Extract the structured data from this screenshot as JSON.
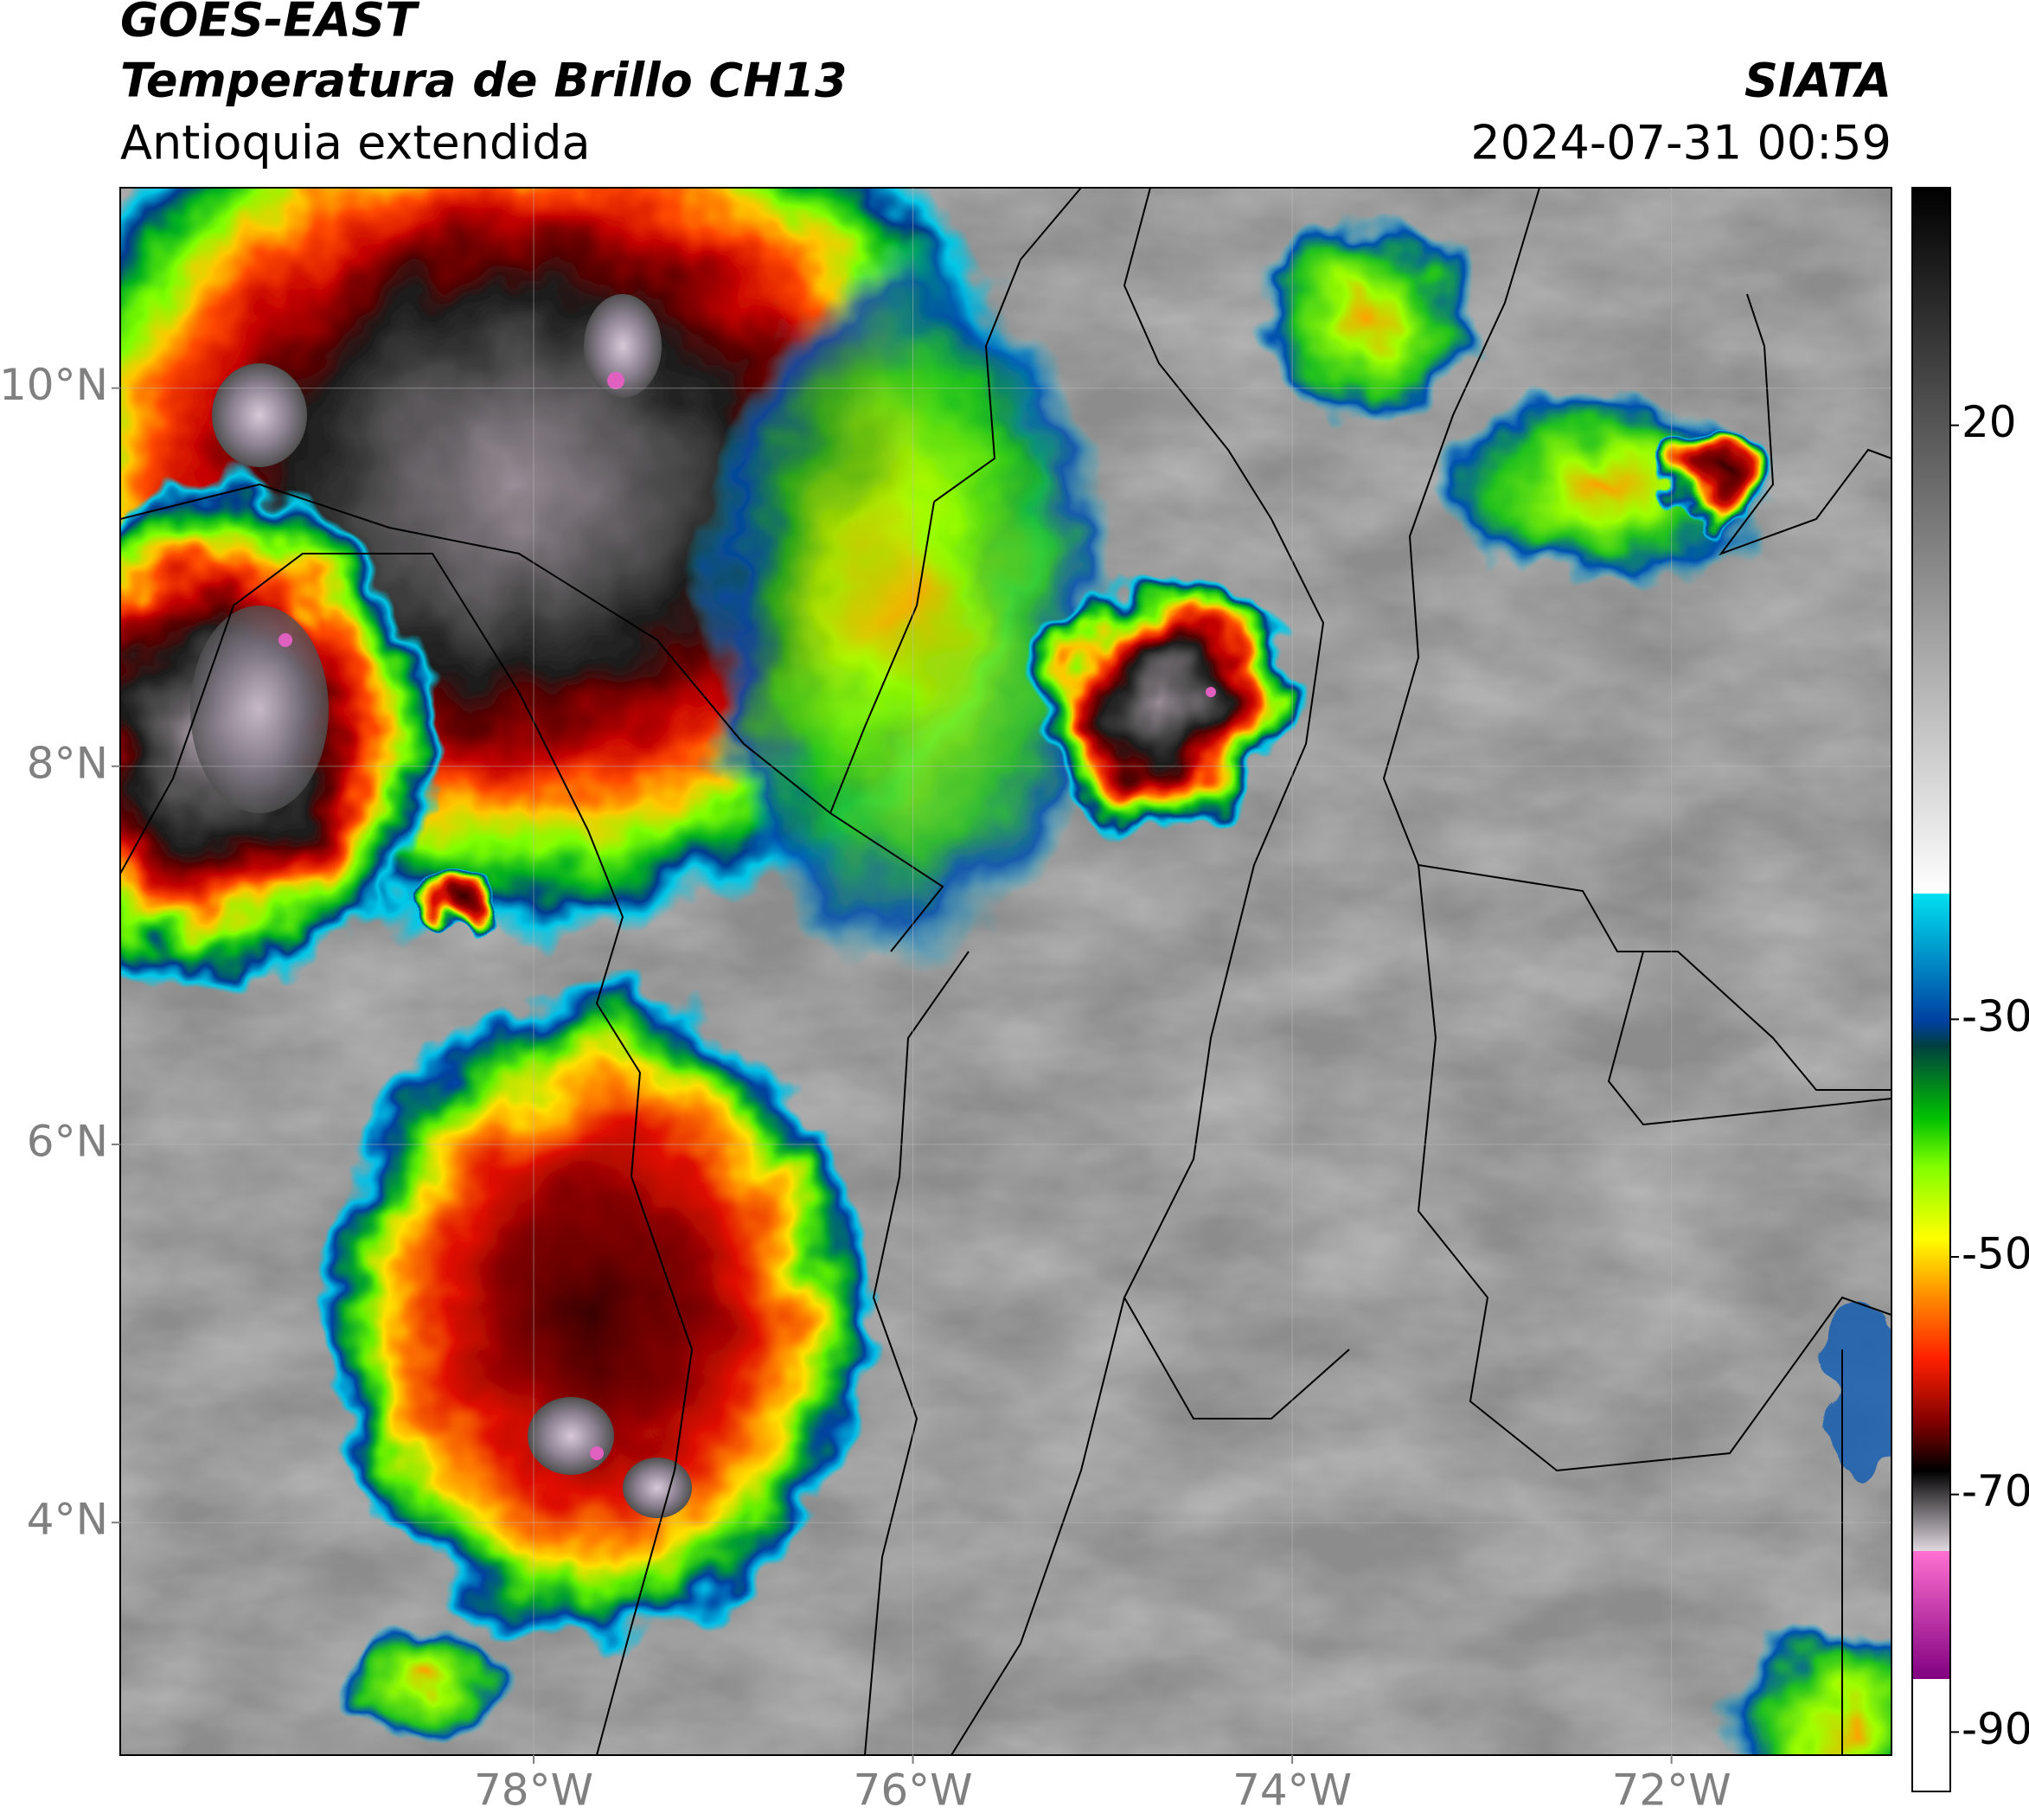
{
  "header": {
    "satellite": "GOES-EAST",
    "product": "Temperatura de Brillo CH13",
    "region": "Antioquia extendida",
    "source": "SIATA",
    "datetime": "2024-07-31 00:59"
  },
  "map": {
    "xlim": [
      -80.18,
      -70.84
    ],
    "ylim": [
      2.77,
      11.06
    ],
    "xticks": [
      {
        "value": -78,
        "label": "78°W"
      },
      {
        "value": -76,
        "label": "76°W"
      },
      {
        "value": -74,
        "label": "74°W"
      },
      {
        "value": -72,
        "label": "72°W"
      }
    ],
    "yticks": [
      {
        "value": 10,
        "label": "10°N"
      },
      {
        "value": 8,
        "label": "8°N"
      },
      {
        "value": 6,
        "label": "6°N"
      },
      {
        "value": 4,
        "label": "4°N"
      }
    ],
    "grid": true
  },
  "colorbar": {
    "lim": [
      -95,
      40
    ],
    "ticks": [
      20,
      -30,
      -50,
      -70,
      -90
    ]
  }
}
